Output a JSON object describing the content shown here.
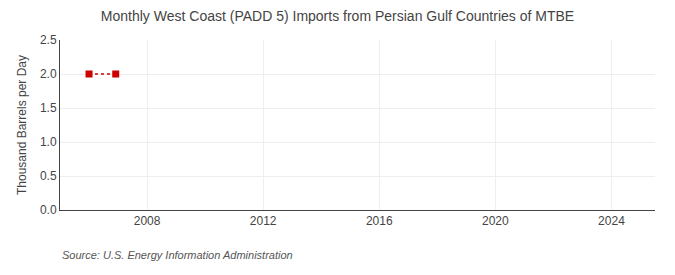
{
  "chart_data": {
    "type": "line",
    "title": "Monthly West Coast (PADD 5) Imports from Persian Gulf Countries of MTBE",
    "y_label": "Thousand Barrels per Day",
    "annotations": [
      "Source: U.S. Energy Information Administration"
    ],
    "x": [
      2006.0,
      2006.92
    ],
    "values": [
      2.0,
      2.0
    ],
    "color": "#cc0000",
    "marker": "square",
    "line_style": "dotted",
    "xlim": [
      2005.0,
      2025.5
    ],
    "ylim": [
      0.0,
      2.5
    ],
    "xticks": [
      2008,
      2012,
      2016,
      2020,
      2024
    ],
    "yticks": [
      {
        "value": 0.0,
        "label": "0.0"
      },
      {
        "value": 0.5,
        "label": "0.5"
      },
      {
        "value": 1.0,
        "label": "1.0"
      },
      {
        "value": 1.5,
        "label": "1.5"
      },
      {
        "value": 2.0,
        "label": "2.0"
      },
      {
        "value": 2.5,
        "label": "2.5"
      }
    ],
    "grid": true
  }
}
